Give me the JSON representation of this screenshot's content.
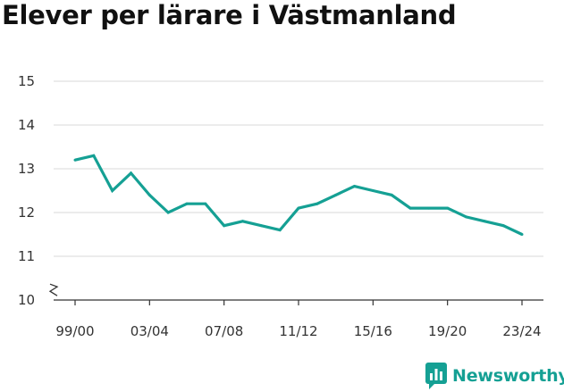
{
  "title": "Elever per lärare i Västmanland",
  "brand": {
    "name": "Newsworthy",
    "icon": "newsworthy-logo-icon"
  },
  "colors": {
    "line": "#15a094",
    "grid": "#d9d9d9",
    "axis": "#333333",
    "brand": "#15a094"
  },
  "chart_data": {
    "type": "line",
    "title": "Elever per lärare i Västmanland",
    "xlabel": "",
    "ylabel": "",
    "ylim": [
      10,
      15
    ],
    "y_ticks": [
      10,
      11,
      12,
      13,
      14,
      15
    ],
    "y_axis_break": true,
    "grid": true,
    "x_tick_labels": [
      "99/00",
      "03/04",
      "07/08",
      "11/12",
      "15/16",
      "19/20",
      "23/24"
    ],
    "categories": [
      "99/00",
      "00/01",
      "01/02",
      "02/03",
      "03/04",
      "04/05",
      "05/06",
      "06/07",
      "07/08",
      "08/09",
      "09/10",
      "10/11",
      "11/12",
      "12/13",
      "13/14",
      "14/15",
      "15/16",
      "16/17",
      "17/18",
      "18/19",
      "19/20",
      "20/21",
      "21/22",
      "22/23",
      "23/24"
    ],
    "series": [
      {
        "values": [
          13.2,
          13.3,
          12.5,
          12.9,
          12.4,
          12.0,
          12.2,
          12.2,
          11.7,
          11.8,
          11.7,
          11.6,
          12.1,
          12.2,
          12.4,
          12.6,
          12.5,
          12.4,
          12.1,
          12.1,
          12.1,
          11.9,
          11.8,
          11.7,
          11.5
        ]
      }
    ]
  }
}
